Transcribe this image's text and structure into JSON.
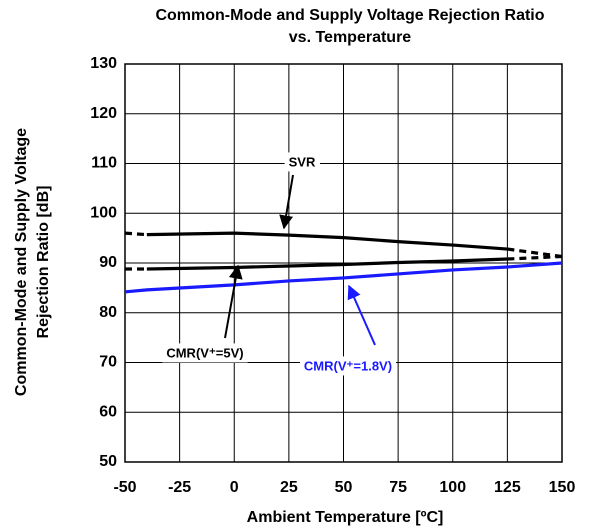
{
  "chart_data": {
    "type": "line",
    "title": [
      "Common-Mode and Supply Voltage Rejection Ratio",
      "vs. Temperature"
    ],
    "x_label": "Ambient Temperature [ºC]",
    "y_label": [
      "Common-Mode and Supply Voltage",
      "Rejection Ratio [dB]"
    ],
    "x": [
      -50,
      -40,
      0,
      25,
      50,
      75,
      100,
      125,
      150
    ],
    "series": [
      {
        "name": "SVR",
        "color": "#000000",
        "dashed_ends": true,
        "values": [
          96,
          95.7,
          96,
          95.6,
          95.1,
          94.3,
          93.6,
          92.8,
          91.3
        ]
      },
      {
        "name": "CMR(V⁺=5V)",
        "color": "#000000",
        "dashed_ends": true,
        "values": [
          88.8,
          88.8,
          89.1,
          89.4,
          89.7,
          90.1,
          90.4,
          90.8,
          91.3
        ]
      },
      {
        "name": "CMR(V⁺=1.8V)",
        "color": "#1a1aff",
        "dashed_ends": false,
        "values": [
          84.2,
          84.6,
          85.6,
          86.4,
          87,
          87.8,
          88.6,
          89.2,
          90
        ]
      }
    ],
    "xlim": [
      -50,
      150
    ],
    "xticks": [
      -50,
      -25,
      0,
      25,
      50,
      75,
      100,
      125,
      150
    ],
    "ylim": [
      50,
      130
    ],
    "yticks": [
      50,
      60,
      70,
      80,
      90,
      100,
      110,
      120,
      130
    ],
    "grid": true
  }
}
